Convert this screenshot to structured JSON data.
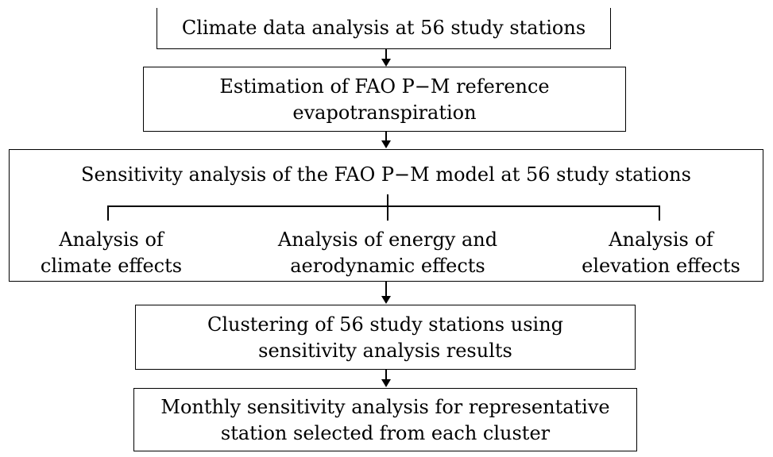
{
  "diagram": {
    "step1": "Climate data analysis at 56 study stations",
    "step2": {
      "line1": "Estimation of FAO P−M reference",
      "line2": "evapotranspiration"
    },
    "step3": {
      "title": "Sensitivity analysis of the FAO P−M model at 56 study stations",
      "branch_climate": {
        "line1": "Analysis of",
        "line2": "climate effects"
      },
      "branch_energy": {
        "line1": "Analysis of energy and",
        "line2": "aerodynamic effects"
      },
      "branch_elevation": {
        "line1": "Analysis of",
        "line2": "elevation effects"
      }
    },
    "step4": {
      "line1": "Clustering of 56 study stations using",
      "line2": "sensitivity analysis results"
    },
    "step5": {
      "line1": "Monthly sensitivity analysis for representative",
      "line2": "station selected from each cluster"
    }
  }
}
